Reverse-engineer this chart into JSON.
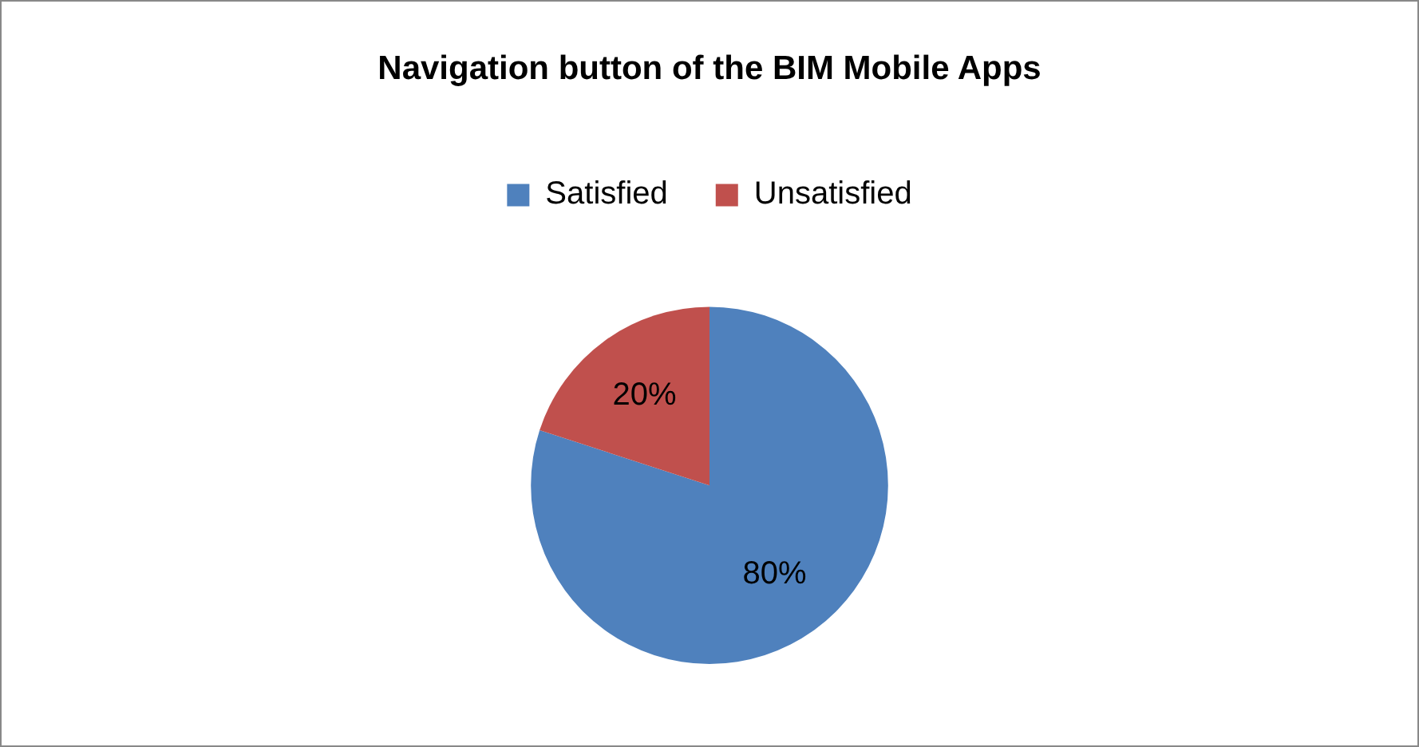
{
  "chart_data": {
    "type": "pie",
    "title": "Navigation button of the BIM Mobile Apps",
    "categories": [
      "Satisfied",
      "Unsatisfied"
    ],
    "values": [
      80,
      20
    ],
    "colors": [
      "#4f81bd",
      "#c0504d"
    ],
    "value_labels": [
      "80%",
      "20%"
    ],
    "legend": "top"
  }
}
